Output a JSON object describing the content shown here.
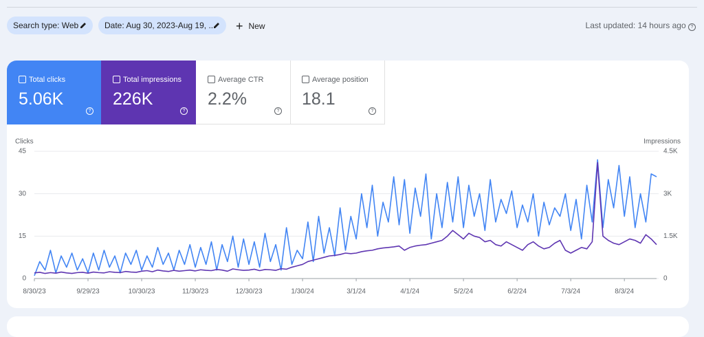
{
  "toolbar": {
    "chips": [
      "Search type: Web",
      "Date: Aug 30, 2023-Aug 19, ..."
    ],
    "new_button": "New",
    "last_updated": "Last updated: 14 hours ago"
  },
  "metrics": [
    {
      "label": "Total clicks",
      "value": "5.06K"
    },
    {
      "label": "Total impressions",
      "value": "226K"
    },
    {
      "label": "Average CTR",
      "value": "2.2%"
    },
    {
      "label": "Average position",
      "value": "18.1"
    }
  ],
  "chart_data": {
    "type": "line",
    "y_label": "Clicks",
    "y2_label": "Impressions",
    "categories": [
      "8/30/23",
      null,
      null,
      null,
      null,
      null,
      null,
      null,
      null,
      null,
      "9/29/23",
      null,
      null,
      null,
      null,
      null,
      null,
      null,
      null,
      null,
      "10/30/23",
      null,
      null,
      null,
      null,
      null,
      null,
      null,
      null,
      null,
      "11/30/23",
      null,
      null,
      null,
      null,
      null,
      null,
      null,
      null,
      null,
      "12/30/23",
      null,
      null,
      null,
      null,
      null,
      null,
      null,
      null,
      null,
      "1/30/24",
      null,
      null,
      null,
      null,
      null,
      null,
      null,
      null,
      null,
      "3/1/24",
      null,
      null,
      null,
      null,
      null,
      null,
      null,
      null,
      null,
      "4/1/24",
      null,
      null,
      null,
      null,
      null,
      null,
      null,
      null,
      null,
      "5/2/24",
      null,
      null,
      null,
      null,
      null,
      null,
      null,
      null,
      null,
      "6/2/24",
      null,
      null,
      null,
      null,
      null,
      null,
      null,
      null,
      null,
      "7/3/24",
      null,
      null,
      null,
      null,
      null,
      null,
      null,
      null,
      null,
      "8/3/24",
      null,
      null,
      null,
      null,
      null,
      null
    ],
    "ylim": [
      0,
      45
    ],
    "yticks": [
      0,
      15,
      30,
      45
    ],
    "y2lim": [
      0,
      4500
    ],
    "y2ticks": [
      0,
      {
        "value": 1500,
        "label": "1.5K"
      },
      {
        "value": 3000,
        "label": "3K"
      },
      {
        "value": 4500,
        "label": "4.5K"
      }
    ],
    "grid": true,
    "series": [
      {
        "color": "#4285f4",
        "values": [
          1,
          6,
          3,
          10,
          2,
          8,
          4,
          9,
          3,
          7,
          2,
          9,
          3,
          10,
          4,
          8,
          2,
          9,
          5,
          10,
          3,
          8,
          4,
          11,
          5,
          9,
          3,
          10,
          5,
          12,
          4,
          11,
          5,
          13,
          3,
          12,
          6,
          15,
          4,
          14,
          5,
          13,
          4,
          16,
          6,
          12,
          3,
          18,
          5,
          10,
          7,
          20,
          6,
          22,
          9,
          18,
          8,
          25,
          10,
          22,
          14,
          30,
          18,
          33,
          15,
          27,
          20,
          36,
          19,
          35,
          16,
          32,
          22,
          37,
          14,
          30,
          18,
          34,
          20,
          36,
          18,
          33,
          22,
          30,
          17,
          35,
          20,
          28,
          23,
          31,
          18,
          26,
          20,
          30,
          15,
          27,
          19,
          25,
          22,
          30,
          17,
          28,
          14,
          33,
          20,
          42,
          18,
          35,
          25,
          40,
          22,
          36,
          18,
          30,
          20,
          37,
          36
        ]
      },
      {
        "color": "#5e35b1",
        "axis": "y2",
        "values": [
          200,
          220,
          180,
          210,
          190,
          230,
          200,
          180,
          210,
          220,
          190,
          230,
          210,
          200,
          240,
          220,
          210,
          250,
          230,
          220,
          260,
          280,
          240,
          300,
          270,
          250,
          290,
          260,
          280,
          300,
          270,
          310,
          290,
          280,
          320,
          300,
          260,
          340,
          310,
          290,
          300,
          330,
          280,
          320,
          310,
          290,
          350,
          330,
          400,
          450,
          500,
          600,
          650,
          700,
          750,
          800,
          820,
          850,
          900,
          880,
          900,
          950,
          980,
          1000,
          1050,
          1080,
          1100,
          1120,
          1150,
          1000,
          1100,
          1150,
          1180,
          1200,
          1250,
          1300,
          1350,
          1500,
          1700,
          1550,
          1400,
          1600,
          1500,
          1450,
          1300,
          1350,
          1200,
          1150,
          1300,
          1200,
          1100,
          1000,
          1200,
          1300,
          1150,
          1050,
          1100,
          1250,
          1350,
          1000,
          900,
          1000,
          1100,
          1050,
          1300,
          4100,
          1500,
          1350,
          1250,
          1200,
          1300,
          1400,
          1350,
          1250,
          1550,
          1400,
          1200
        ]
      }
    ]
  }
}
